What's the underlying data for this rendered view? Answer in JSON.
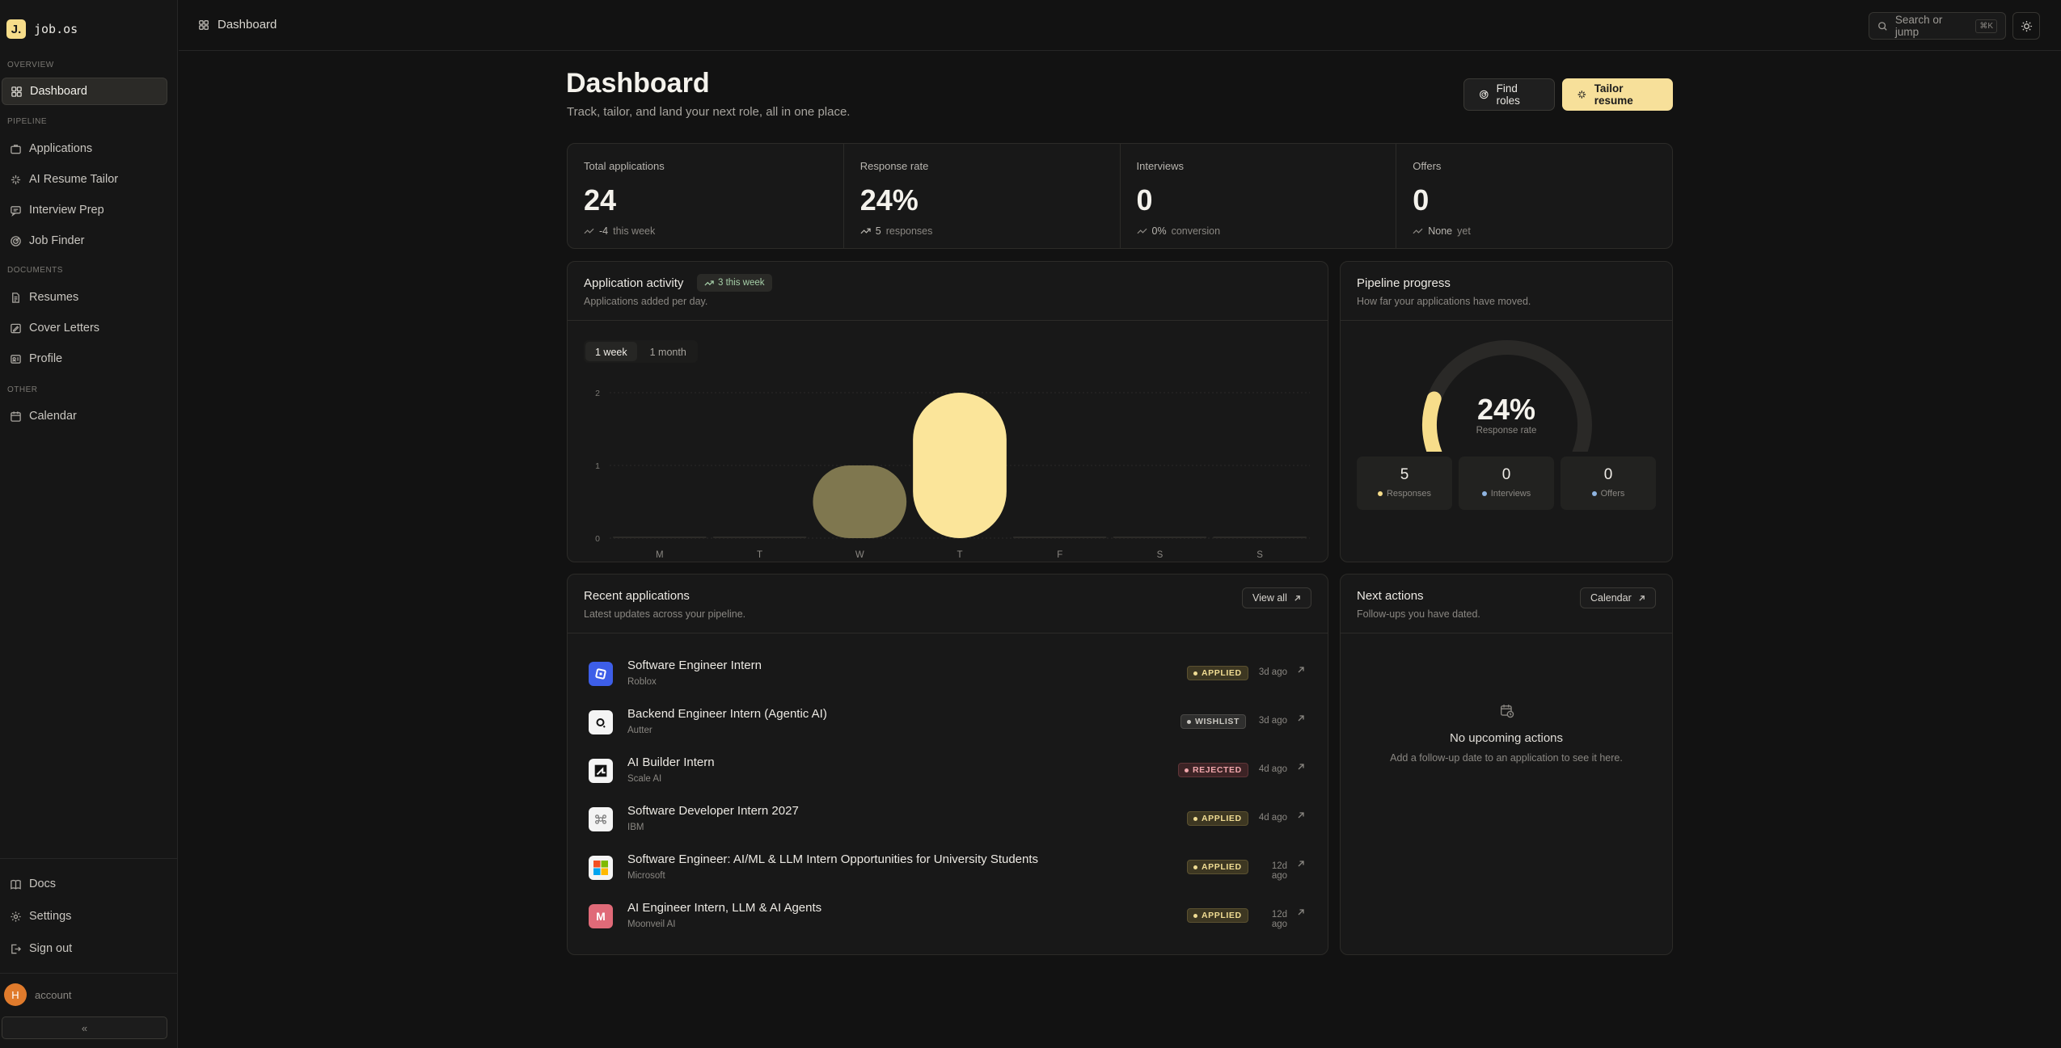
{
  "brand": {
    "logo_letter": "J.",
    "name": "job.os"
  },
  "sidebar": {
    "sections": {
      "overview": "OVERVIEW",
      "pipeline": "PIPELINE",
      "documents": "DOCUMENTS",
      "other": "OTHER"
    },
    "items": [
      {
        "label": "Dashboard",
        "icon": "grid-icon",
        "active": true
      },
      {
        "label": "Applications",
        "icon": "briefcase-icon"
      },
      {
        "label": "AI Resume Tailor",
        "icon": "sparkle-icon"
      },
      {
        "label": "Interview Prep",
        "icon": "chat-icon"
      },
      {
        "label": "Job Finder",
        "icon": "radar-icon"
      },
      {
        "label": "Resumes",
        "icon": "document-icon"
      },
      {
        "label": "Cover Letters",
        "icon": "pen-icon"
      },
      {
        "label": "Profile",
        "icon": "id-card-icon"
      },
      {
        "label": "Calendar",
        "icon": "calendar-icon"
      }
    ],
    "footer": [
      {
        "label": "Docs",
        "icon": "book-icon"
      },
      {
        "label": "Settings",
        "icon": "gear-icon"
      },
      {
        "label": "Sign out",
        "icon": "sign-out-icon"
      }
    ],
    "account": {
      "initial": "H",
      "label": "account"
    },
    "collapse_glyph": "«"
  },
  "topbar": {
    "breadcrumb": "Dashboard",
    "search_placeholder": "Search or jump",
    "search_shortcut": "⌘K"
  },
  "header": {
    "title": "Dashboard",
    "subtitle": "Track, tailor, and land your next role, all in one place.",
    "find_roles": "Find roles",
    "tailor_resume": "Tailor resume"
  },
  "stats": [
    {
      "label": "Total applications",
      "value": "24",
      "foot_value": "-4",
      "foot_text": "this week"
    },
    {
      "label": "Response rate",
      "value": "24%",
      "foot_value": "5",
      "foot_text": "responses"
    },
    {
      "label": "Interviews",
      "value": "0",
      "foot_value": "0%",
      "foot_text": "conversion"
    },
    {
      "label": "Offers",
      "value": "0",
      "foot_value": "None",
      "foot_text": "yet"
    }
  ],
  "activity": {
    "title": "Application activity",
    "badge": "3 this week",
    "subtitle": "Applications added per day.",
    "ranges": [
      "1 week",
      "1 month"
    ],
    "selected_range": "1 week"
  },
  "chart_data": {
    "type": "bar",
    "categories": [
      "M",
      "T",
      "W",
      "T",
      "F",
      "S",
      "S"
    ],
    "values": [
      0,
      0,
      1,
      2,
      0,
      0,
      0
    ],
    "ylim": [
      0,
      2
    ],
    "yticks": [
      "0",
      "1",
      "2"
    ],
    "grid": true,
    "colors": [
      "#7f774f",
      "#fbe59a"
    ]
  },
  "pipeline": {
    "title": "Pipeline progress",
    "subtitle": "How far your applications have moved.",
    "gauge_percent": 24,
    "gauge_value": "24%",
    "gauge_label": "Response rate",
    "metrics": [
      {
        "value": "5",
        "label": "Responses",
        "color": "#f7dd8a"
      },
      {
        "value": "0",
        "label": "Interviews",
        "color": "#8fb4e0"
      },
      {
        "value": "0",
        "label": "Offers",
        "color": "#8fb4e0"
      }
    ]
  },
  "recent": {
    "title": "Recent applications",
    "subtitle": "Latest updates across your pipeline.",
    "view_all": "View all",
    "rows": [
      {
        "title": "Software Engineer Intern",
        "company": "Roblox",
        "status": "APPLIED",
        "time": "3d ago",
        "logo": "◘",
        "logo_bg": "#3d5ee8",
        "logo_fg": "#ffffff"
      },
      {
        "title": "Backend Engineer Intern (Agentic AI)",
        "company": "Autter",
        "status": "WISHLIST",
        "time": "3d ago",
        "logo": "a",
        "logo_bg": "#f4f4f4",
        "logo_fg": "#111111"
      },
      {
        "title": "AI Builder Intern",
        "company": "Scale AI",
        "status": "REJECTED",
        "time": "4d ago",
        "logo": "◩",
        "logo_bg": "#f4f4f4",
        "logo_fg": "#111111"
      },
      {
        "title": "Software Developer Intern 2027",
        "company": "IBM",
        "status": "APPLIED",
        "time": "4d ago",
        "logo": "✱",
        "logo_bg": "#f4f4f4",
        "logo_fg": "#666666"
      },
      {
        "title": "Software Engineer: AI/ML & LLM Intern Opportunities for University Students",
        "company": "Microsoft",
        "status": "APPLIED",
        "time": "12d ago",
        "logo": "",
        "logo_bg": "#f4f4f4",
        "logo_fg": "#111111"
      },
      {
        "title": "AI Engineer Intern, LLM & AI Agents",
        "company": "Moonveil AI",
        "status": "APPLIED",
        "time": "12d ago",
        "logo": "M",
        "logo_bg": "#e06a78",
        "logo_fg": "#ffffff"
      }
    ]
  },
  "next_actions": {
    "title": "Next actions",
    "subtitle": "Follow-ups you have dated.",
    "calendar_button": "Calendar",
    "empty_title": "No upcoming actions",
    "empty_subtitle": "Add a follow-up date to an application to see it here."
  }
}
